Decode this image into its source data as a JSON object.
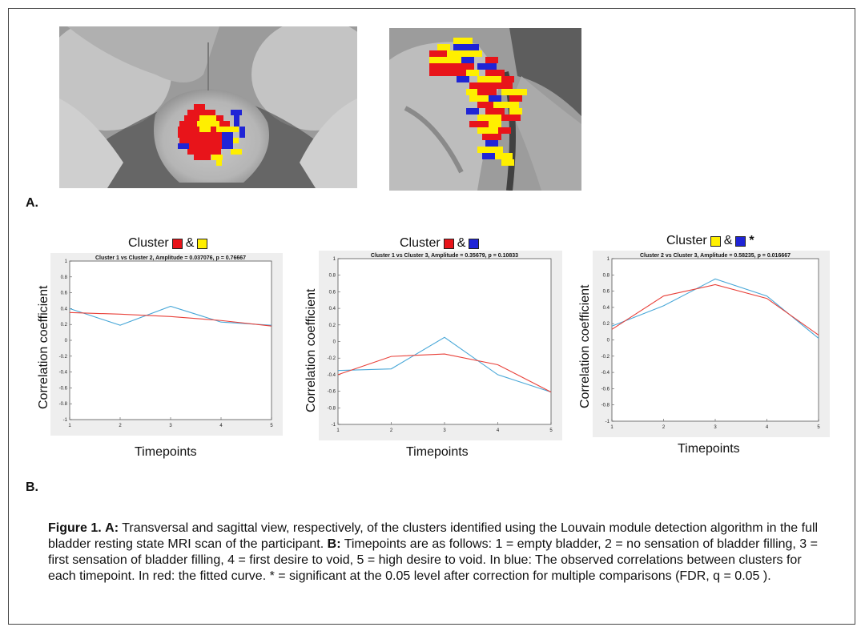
{
  "panel_a_label": "A.",
  "panel_b_label": "B.",
  "cluster_colors": {
    "red": "#e8141a",
    "yellow": "#ffef00",
    "blue": "#1f24d6"
  },
  "plots": [
    {
      "cluster_prefix": "Cluster",
      "amp": "&",
      "colors": [
        "red",
        "yellow"
      ],
      "star": "",
      "xlabel": "Timepoints",
      "ylabel": "Correlation coefficient"
    },
    {
      "cluster_prefix": "Cluster",
      "amp": "&",
      "colors": [
        "red",
        "blue"
      ],
      "star": "",
      "xlabel": "Timepoints",
      "ylabel": "Correlation coefficient"
    },
    {
      "cluster_prefix": "Cluster",
      "amp": "&",
      "colors": [
        "yellow",
        "blue"
      ],
      "star": "*",
      "xlabel": "Timepoints",
      "ylabel": "Correlation coefficient"
    }
  ],
  "chart_data": [
    {
      "type": "line",
      "title": "Cluster 1 vs Cluster 2, Amplitude = 0.037076, p = 0.76667",
      "x": [
        1,
        2,
        3,
        4,
        5
      ],
      "xlim": [
        1,
        5
      ],
      "ylim": [
        -1,
        1
      ],
      "xticks": [
        "1",
        "2",
        "3",
        "4",
        "5"
      ],
      "yticks": [
        "-1",
        "-0.8",
        "-0.6",
        "-0.4",
        "-0.2",
        "0",
        "0.2",
        "0.4",
        "0.6",
        "0.8",
        "1"
      ],
      "series": [
        {
          "color": "#4aa8d8",
          "values": [
            0.4,
            0.19,
            0.43,
            0.23,
            0.19
          ]
        },
        {
          "color": "#e8413a",
          "values": [
            0.35,
            0.33,
            0.3,
            0.25,
            0.18
          ]
        }
      ]
    },
    {
      "type": "line",
      "title": "Cluster 1 vs Cluster 3, Amplitude = 0.35679, p = 0.10833",
      "x": [
        1,
        2,
        3,
        4,
        5
      ],
      "xlim": [
        1,
        5
      ],
      "ylim": [
        -1,
        1
      ],
      "xticks": [
        "1",
        "2",
        "3",
        "4",
        "5"
      ],
      "yticks": [
        "-1",
        "-0.8",
        "-0.6",
        "-0.4",
        "-0.2",
        "0",
        "0.2",
        "0.4",
        "0.6",
        "0.8",
        "1"
      ],
      "series": [
        {
          "color": "#4aa8d8",
          "values": [
            -0.35,
            -0.33,
            0.05,
            -0.4,
            -0.61
          ]
        },
        {
          "color": "#e8413a",
          "values": [
            -0.4,
            -0.18,
            -0.15,
            -0.28,
            -0.61
          ]
        }
      ]
    },
    {
      "type": "line",
      "title": "Cluster 2 vs Cluster 3, Amplitude = 0.58235, p = 0.016667",
      "x": [
        1,
        2,
        3,
        4,
        5
      ],
      "xlim": [
        1,
        5
      ],
      "ylim": [
        -1,
        1
      ],
      "xticks": [
        "1",
        "2",
        "3",
        "4",
        "5"
      ],
      "yticks": [
        "-1",
        "-0.8",
        "-0.6",
        "-0.4",
        "-0.2",
        "0",
        "0.2",
        "0.4",
        "0.6",
        "0.8",
        "1"
      ],
      "series": [
        {
          "color": "#4aa8d8",
          "values": [
            0.17,
            0.42,
            0.75,
            0.54,
            0.02
          ]
        },
        {
          "color": "#e8413a",
          "values": [
            0.13,
            0.54,
            0.68,
            0.51,
            0.06
          ]
        }
      ]
    }
  ],
  "caption": {
    "label_figure": "Figure 1.",
    "label_a": "A:",
    "text_a": "Transversal and sagittal view, respectively, of the clusters identified using the Louvain module detection algorithm in the full bladder resting state MRI scan of the participant.",
    "label_b": "B:",
    "text_b": "Timepoints are as follows: 1 = empty bladder, 2 = no sensation of bladder filling, 3 = first sensation of bladder filling, 4 = first desire to void, 5 = high desire to void. In blue: The observed correlations between clusters for each timepoint. In red: the fitted curve. * = significant at the 0.05 level after correction for multiple comparisons (FDR, q = 0.05 )."
  }
}
